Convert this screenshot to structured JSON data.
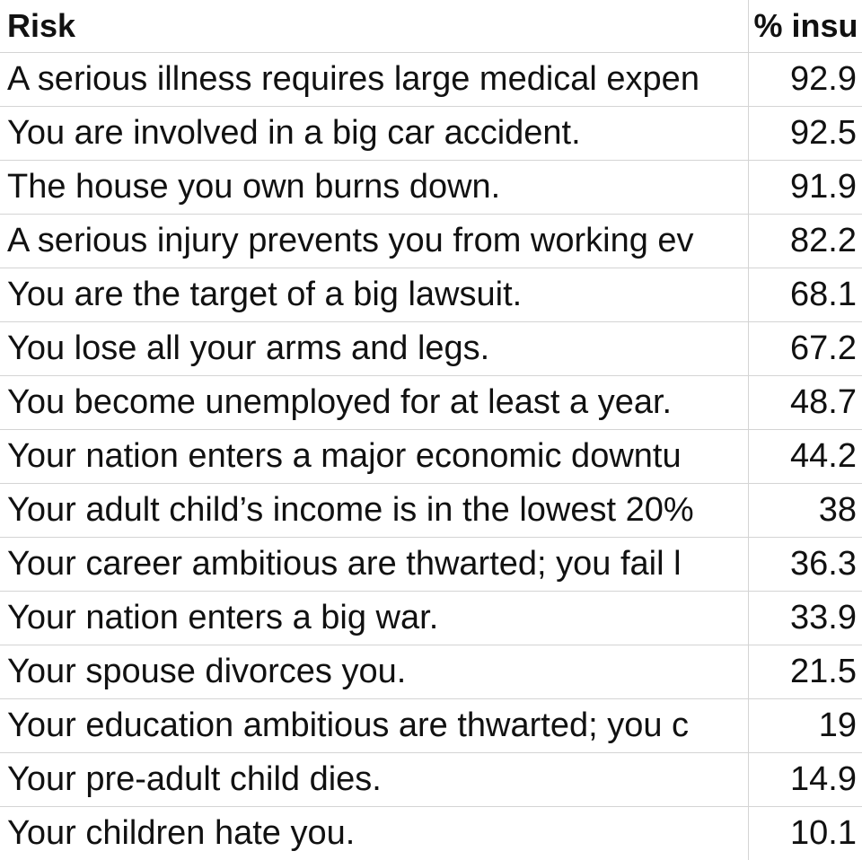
{
  "table": {
    "headers": {
      "risk": "Risk",
      "pct": "% insu"
    },
    "rows": [
      {
        "risk": "A serious illness requires large medical expen",
        "pct": "92.9"
      },
      {
        "risk": "You are involved in a big car accident.",
        "pct": "92.5"
      },
      {
        "risk": "The house you own burns down.",
        "pct": "91.9"
      },
      {
        "risk": "A serious injury prevents you from working ev",
        "pct": "82.2"
      },
      {
        "risk": "You are the target of a big lawsuit.",
        "pct": "68.1"
      },
      {
        "risk": "You lose all your arms and legs.",
        "pct": "67.2"
      },
      {
        "risk": "You become unemployed for at least a year.",
        "pct": "48.7"
      },
      {
        "risk": "Your nation enters a major economic downtu",
        "pct": "44.2"
      },
      {
        "risk": "Your adult child’s income is in the lowest 20%",
        "pct": "38"
      },
      {
        "risk": "Your career ambitious are thwarted; you fail l",
        "pct": "36.3"
      },
      {
        "risk": "Your nation enters a big war.",
        "pct": "33.9"
      },
      {
        "risk": "Your spouse divorces you.",
        "pct": "21.5"
      },
      {
        "risk": "Your education ambitious are thwarted; you c",
        "pct": "19"
      },
      {
        "risk": "Your pre-adult child dies.",
        "pct": "14.9"
      },
      {
        "risk": "Your children hate you.",
        "pct": "10.1"
      }
    ]
  }
}
